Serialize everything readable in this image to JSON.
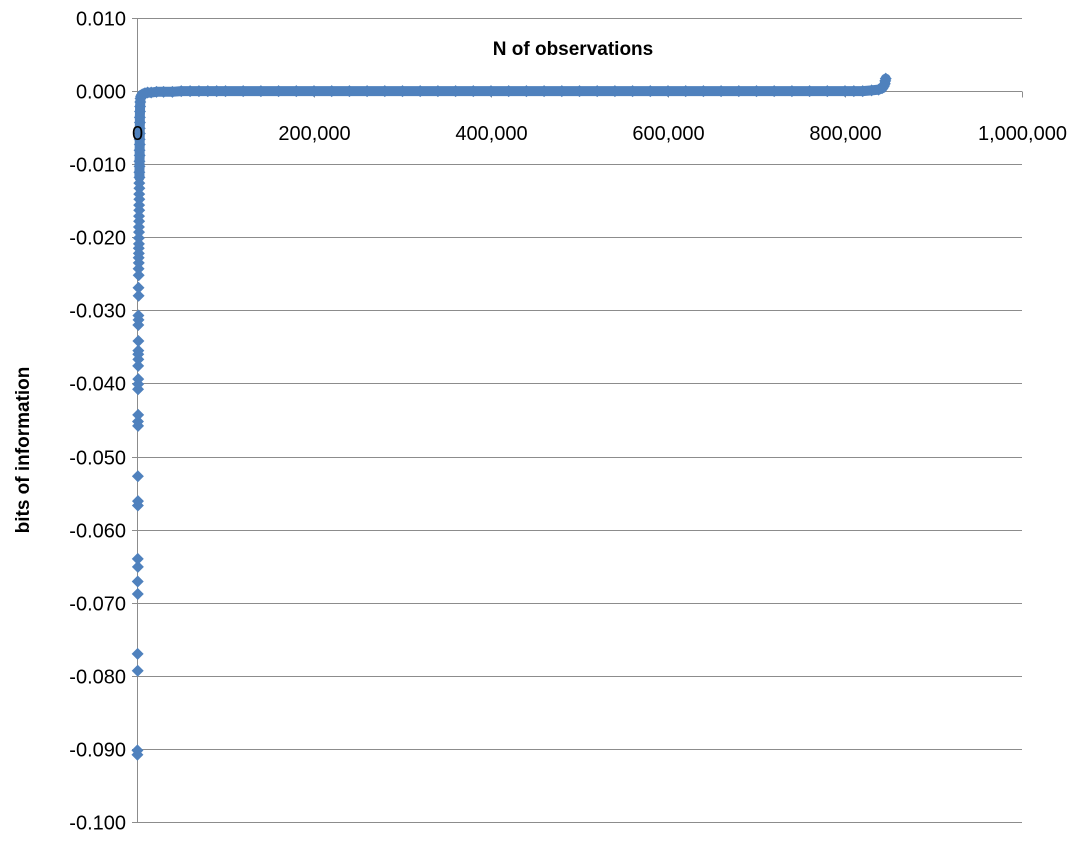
{
  "chart_data": {
    "type": "scatter",
    "title": "",
    "xlabel": "N of observations",
    "ylabel": "bits of information",
    "xlim": [
      0,
      1000000
    ],
    "ylim": [
      -0.1,
      0.01
    ],
    "x_tick_values": [
      0,
      200000,
      400000,
      600000,
      800000,
      1000000
    ],
    "x_tick_labels": [
      "0",
      "200,000",
      "400,000",
      "600,000",
      "800,000",
      "1,000,000"
    ],
    "y_tick_values": [
      0.01,
      0.0,
      -0.01,
      -0.02,
      -0.03,
      -0.04,
      -0.05,
      -0.06,
      -0.07,
      -0.08,
      -0.09,
      -0.1
    ],
    "y_tick_labels": [
      "0.010",
      "0.000",
      "-0.010",
      "-0.020",
      "-0.030",
      "-0.040",
      "-0.050",
      "-0.060",
      "-0.070",
      "-0.080",
      "-0.090",
      "-0.100"
    ],
    "grid": "horizontal",
    "legend": "none",
    "marker": "diamond",
    "marker_color": "#4F81BD",
    "series": [
      {
        "values": [
          [
            500,
            -0.0908
          ],
          [
            500,
            -0.0902
          ],
          [
            800,
            -0.0793
          ],
          [
            700,
            -0.077
          ],
          [
            900,
            -0.0688
          ],
          [
            800,
            -0.0671
          ],
          [
            1000,
            -0.0651
          ],
          [
            900,
            -0.064
          ],
          [
            1000,
            -0.0567
          ],
          [
            1100,
            -0.0561
          ],
          [
            1000,
            -0.0527
          ],
          [
            1200,
            -0.0458
          ],
          [
            1100,
            -0.0452
          ],
          [
            1300,
            -0.0443
          ],
          [
            1200,
            -0.0408
          ],
          [
            1300,
            -0.0401
          ],
          [
            1400,
            -0.0394
          ],
          [
            1300,
            -0.0376
          ],
          [
            1500,
            -0.0367
          ],
          [
            1400,
            -0.036
          ],
          [
            1500,
            -0.0355
          ],
          [
            1600,
            -0.0342
          ],
          [
            1500,
            -0.032
          ],
          [
            1700,
            -0.0313
          ],
          [
            1600,
            -0.0307
          ],
          [
            1800,
            -0.028
          ],
          [
            1700,
            -0.0269
          ],
          [
            1900,
            -0.0252
          ],
          [
            1800,
            -0.0243
          ],
          [
            2000,
            -0.0235
          ],
          [
            1900,
            -0.0228
          ],
          [
            2100,
            -0.0222
          ],
          [
            2000,
            -0.0215
          ],
          [
            2200,
            -0.0209
          ],
          [
            2100,
            -0.0201
          ],
          [
            2300,
            -0.0193
          ],
          [
            2200,
            -0.0186
          ],
          [
            2400,
            -0.0178
          ],
          [
            2300,
            -0.0171
          ],
          [
            2500,
            -0.0163
          ],
          [
            2400,
            -0.0156
          ],
          [
            2600,
            -0.0148
          ],
          [
            2500,
            -0.0141
          ],
          [
            2700,
            -0.0133
          ],
          [
            2600,
            -0.0126
          ],
          [
            2800,
            -0.0118
          ],
          [
            2700,
            -0.0111
          ],
          [
            2900,
            -0.0103
          ],
          [
            2800,
            -0.0096
          ],
          [
            3000,
            -0.0088
          ],
          [
            2900,
            -0.0081
          ],
          [
            3100,
            -0.0073
          ],
          [
            3000,
            -0.0066
          ],
          [
            3200,
            -0.0058
          ],
          [
            3100,
            -0.0051
          ],
          [
            3300,
            -0.0043
          ],
          [
            3200,
            -0.0036
          ],
          [
            3400,
            -0.0028
          ],
          [
            3500,
            -0.0021
          ],
          [
            3700,
            -0.0015
          ],
          [
            4000,
            -0.001
          ],
          [
            4600,
            -0.0007
          ],
          [
            5500,
            -0.0005
          ],
          [
            7000,
            -0.0004
          ],
          [
            9000,
            -0.0003
          ],
          [
            12000,
            -0.0002
          ],
          [
            16000,
            -0.0002
          ],
          [
            22000,
            -0.0001
          ],
          [
            30000,
            -0.0001
          ],
          [
            40000,
            -0.0001
          ],
          [
            50000,
            0.0
          ],
          [
            60000,
            0.0
          ],
          [
            70000,
            0.0
          ],
          [
            80000,
            0.0
          ],
          [
            90000,
            0.0
          ],
          [
            100000,
            0.0
          ],
          [
            120000,
            0.0
          ],
          [
            140000,
            0.0
          ],
          [
            160000,
            0.0
          ],
          [
            180000,
            0.0
          ],
          [
            200000,
            0.0
          ],
          [
            220000,
            0.0
          ],
          [
            240000,
            0.0
          ],
          [
            260000,
            0.0
          ],
          [
            280000,
            0.0
          ],
          [
            300000,
            0.0
          ],
          [
            320000,
            0.0
          ],
          [
            340000,
            0.0
          ],
          [
            360000,
            0.0
          ],
          [
            380000,
            0.0
          ],
          [
            400000,
            0.0
          ],
          [
            420000,
            0.0
          ],
          [
            440000,
            0.0
          ],
          [
            460000,
            0.0
          ],
          [
            480000,
            0.0
          ],
          [
            500000,
            0.0
          ],
          [
            520000,
            0.0
          ],
          [
            540000,
            0.0
          ],
          [
            560000,
            0.0
          ],
          [
            580000,
            0.0
          ],
          [
            600000,
            0.0
          ],
          [
            620000,
            0.0
          ],
          [
            640000,
            0.0
          ],
          [
            660000,
            0.0
          ],
          [
            680000,
            0.0
          ],
          [
            700000,
            0.0
          ],
          [
            720000,
            0.0
          ],
          [
            740000,
            0.0
          ],
          [
            760000,
            0.0
          ],
          [
            780000,
            0.0
          ],
          [
            800000,
            0.0
          ],
          [
            810000,
            0.0
          ],
          [
            820000,
            0.0
          ],
          [
            830000,
            0.0001
          ],
          [
            838000,
            0.0002
          ],
          [
            842000,
            0.0004
          ],
          [
            844000,
            0.0007
          ],
          [
            845000,
            0.001
          ],
          [
            845500,
            0.0014
          ],
          [
            846000,
            0.0017
          ]
        ]
      }
    ]
  }
}
